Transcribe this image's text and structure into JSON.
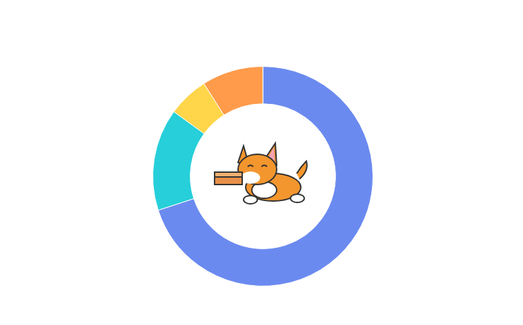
{
  "chart_data": {
    "type": "doughnut",
    "values": [
      70,
      15,
      6,
      9
    ],
    "colors": [
      "#6b8af0",
      "#26cfd9",
      "#ffd54a",
      "#ff9b4a"
    ]
  }
}
